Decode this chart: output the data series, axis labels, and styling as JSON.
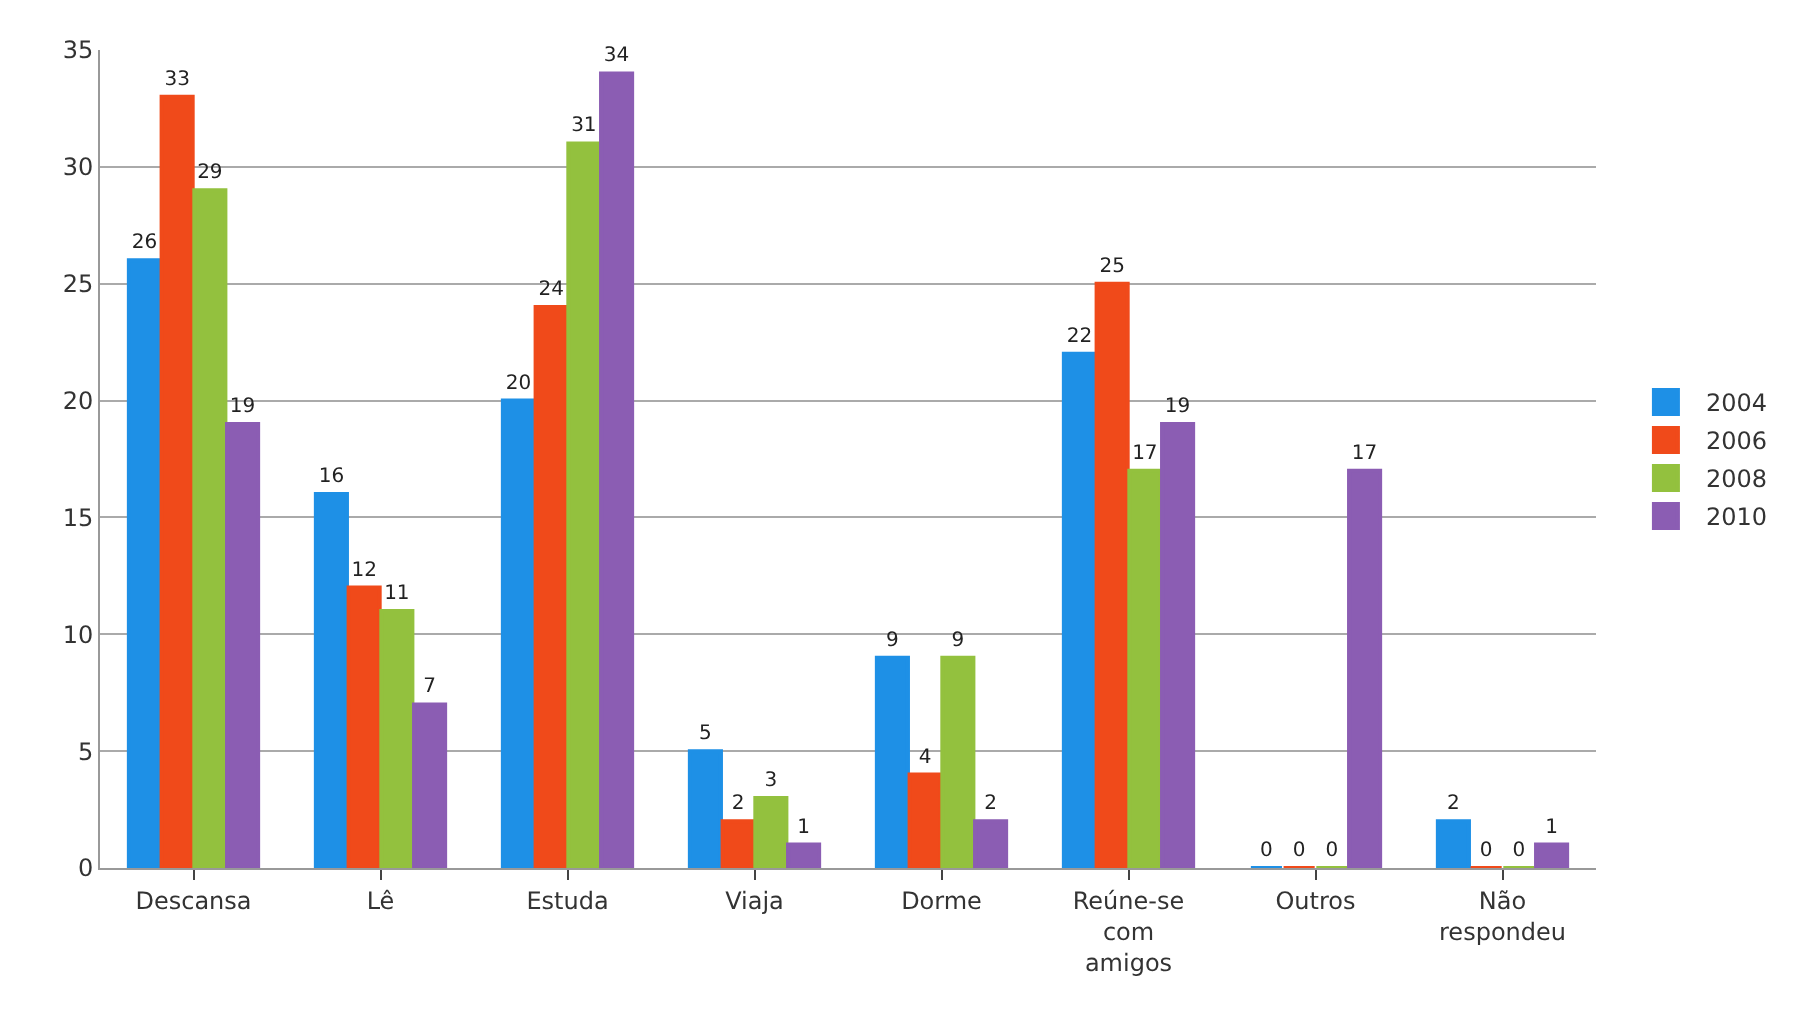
{
  "chart_data": {
    "type": "bar",
    "categories": [
      "Descansa",
      "Lê",
      "Estuda",
      "Viaja",
      "Dorme",
      "Reúne-se com amigos",
      "Outros",
      "Não respondeu"
    ],
    "series": [
      {
        "name": "2004",
        "color": "#1e90e6",
        "values": [
          26,
          16,
          20,
          5,
          9,
          22,
          0,
          2
        ]
      },
      {
        "name": "2006",
        "color": "#f04a1a",
        "values": [
          33,
          12,
          24,
          2,
          4,
          25,
          0,
          0
        ]
      },
      {
        "name": "2008",
        "color": "#93c13e",
        "values": [
          29,
          11,
          31,
          3,
          9,
          17,
          0,
          0
        ]
      },
      {
        "name": "2010",
        "color": "#8b5db3",
        "values": [
          19,
          7,
          34,
          1,
          2,
          19,
          17,
          1
        ]
      }
    ],
    "ylim": [
      0,
      35
    ],
    "yticks": [
      0,
      5,
      10,
      15,
      20,
      25,
      30,
      35
    ],
    "grid": "y",
    "legend": "right",
    "data_labels": true
  }
}
